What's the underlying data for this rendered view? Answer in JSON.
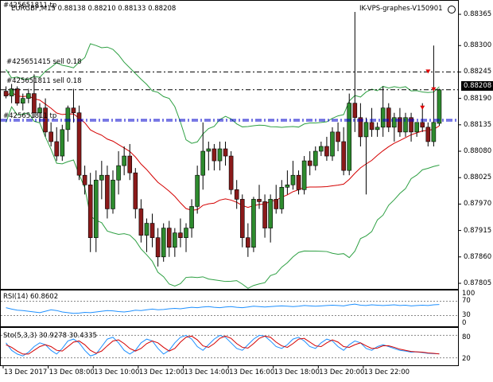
{
  "header": {
    "symbol_line": "EURGBP,M15  0.88138 0.88210 0.88133 0.88208",
    "symbol_line_overlap": "#425651811 tp",
    "indicator_title": "IK-VPS-graphes-V150901"
  },
  "order_lines": [
    {
      "text": "#425651415 sell 0.18",
      "price": 0.88245
    },
    {
      "text": "#425651811 sell 0.18",
      "price": 0.88208
    },
    {
      "text": "#425651811 tp",
      "price": 0.88143
    }
  ],
  "price_axis": {
    "ticks": [
      "0.88365",
      "0.88300",
      "0.88245",
      "0.88190",
      "0.88135",
      "0.88080",
      "0.88025",
      "0.87970",
      "0.87915",
      "0.87860",
      "0.87805"
    ],
    "current_price": "0.88208"
  },
  "rsi": {
    "title": "RSI(14) 60.8602",
    "levels": [
      "100",
      "70",
      "30",
      "0"
    ]
  },
  "stoch": {
    "title": "Sto(5,3,3) 30.9278 30.4335",
    "levels": [
      "80",
      "20"
    ]
  },
  "time_axis": {
    "labels": [
      "13 Dec 2017",
      "13 Dec 08:00",
      "13 Dec 10:00",
      "13 Dec 12:00",
      "13 Dec 14:00",
      "13 Dec 16:00",
      "13 Dec 18:00",
      "13 Dec 20:00",
      "13 Dec 22:00"
    ]
  },
  "colors": {
    "bull": "#2e8b2e",
    "bear": "#8b1a1a",
    "bollinger": "#2ea043",
    "ma": "#d40000",
    "rsi_line": "#1e90ff",
    "stoch_main": "#1e90ff",
    "stoch_signal": "#d40000",
    "order_line": "#000000",
    "tp_line": "#0000cc"
  },
  "chart_data": {
    "type": "candlestick",
    "timeframe": "M15",
    "y_range": [
      0.8779,
      0.884
    ],
    "candles": [
      {
        "o": 0.88205,
        "h": 0.88215,
        "l": 0.8819,
        "c": 0.88195
      },
      {
        "o": 0.88195,
        "h": 0.8822,
        "l": 0.8818,
        "c": 0.8821
      },
      {
        "o": 0.8821,
        "h": 0.88215,
        "l": 0.88175,
        "c": 0.8818
      },
      {
        "o": 0.8818,
        "h": 0.882,
        "l": 0.88165,
        "c": 0.8819
      },
      {
        "o": 0.8819,
        "h": 0.8821,
        "l": 0.8818,
        "c": 0.882
      },
      {
        "o": 0.882,
        "h": 0.8824,
        "l": 0.8815,
        "c": 0.8816
      },
      {
        "o": 0.8816,
        "h": 0.8818,
        "l": 0.8814,
        "c": 0.8817
      },
      {
        "o": 0.8817,
        "h": 0.8819,
        "l": 0.8811,
        "c": 0.8812
      },
      {
        "o": 0.8812,
        "h": 0.8814,
        "l": 0.8809,
        "c": 0.881
      },
      {
        "o": 0.881,
        "h": 0.8813,
        "l": 0.8806,
        "c": 0.8807
      },
      {
        "o": 0.8807,
        "h": 0.88135,
        "l": 0.8806,
        "c": 0.88125
      },
      {
        "o": 0.88125,
        "h": 0.88175,
        "l": 0.881,
        "c": 0.8817
      },
      {
        "o": 0.8817,
        "h": 0.8821,
        "l": 0.8814,
        "c": 0.8816
      },
      {
        "o": 0.8816,
        "h": 0.88175,
        "l": 0.8802,
        "c": 0.8803
      },
      {
        "o": 0.8803,
        "h": 0.8805,
        "l": 0.8799,
        "c": 0.8801
      },
      {
        "o": 0.8801,
        "h": 0.88035,
        "l": 0.8787,
        "c": 0.879
      },
      {
        "o": 0.879,
        "h": 0.8804,
        "l": 0.8787,
        "c": 0.8802
      },
      {
        "o": 0.8802,
        "h": 0.8806,
        "l": 0.8798,
        "c": 0.8803
      },
      {
        "o": 0.8803,
        "h": 0.8805,
        "l": 0.8794,
        "c": 0.8796
      },
      {
        "o": 0.8796,
        "h": 0.8804,
        "l": 0.8795,
        "c": 0.8802
      },
      {
        "o": 0.8802,
        "h": 0.8808,
        "l": 0.8799,
        "c": 0.8805
      },
      {
        "o": 0.8805,
        "h": 0.8809,
        "l": 0.8803,
        "c": 0.8807
      },
      {
        "o": 0.8807,
        "h": 0.88095,
        "l": 0.8802,
        "c": 0.88035
      },
      {
        "o": 0.88035,
        "h": 0.88045,
        "l": 0.8794,
        "c": 0.8796
      },
      {
        "o": 0.8796,
        "h": 0.8798,
        "l": 0.8789,
        "c": 0.87905
      },
      {
        "o": 0.87905,
        "h": 0.8794,
        "l": 0.8787,
        "c": 0.8793
      },
      {
        "o": 0.8793,
        "h": 0.8795,
        "l": 0.8788,
        "c": 0.879
      },
      {
        "o": 0.879,
        "h": 0.8792,
        "l": 0.8784,
        "c": 0.8786
      },
      {
        "o": 0.8786,
        "h": 0.8793,
        "l": 0.8785,
        "c": 0.8792
      },
      {
        "o": 0.8792,
        "h": 0.87935,
        "l": 0.8786,
        "c": 0.8788
      },
      {
        "o": 0.8788,
        "h": 0.8792,
        "l": 0.8786,
        "c": 0.8791
      },
      {
        "o": 0.8791,
        "h": 0.8794,
        "l": 0.8788,
        "c": 0.879
      },
      {
        "o": 0.879,
        "h": 0.8793,
        "l": 0.8787,
        "c": 0.8792
      },
      {
        "o": 0.8792,
        "h": 0.8798,
        "l": 0.879,
        "c": 0.87965
      },
      {
        "o": 0.87965,
        "h": 0.8805,
        "l": 0.8795,
        "c": 0.8803
      },
      {
        "o": 0.8803,
        "h": 0.8814,
        "l": 0.88,
        "c": 0.8808
      },
      {
        "o": 0.8808,
        "h": 0.881,
        "l": 0.8804,
        "c": 0.88085
      },
      {
        "o": 0.88085,
        "h": 0.88095,
        "l": 0.8804,
        "c": 0.8806
      },
      {
        "o": 0.8806,
        "h": 0.881,
        "l": 0.8804,
        "c": 0.88085
      },
      {
        "o": 0.88085,
        "h": 0.881,
        "l": 0.8805,
        "c": 0.8807
      },
      {
        "o": 0.8807,
        "h": 0.8808,
        "l": 0.8799,
        "c": 0.88
      },
      {
        "o": 0.88,
        "h": 0.8802,
        "l": 0.8796,
        "c": 0.8798
      },
      {
        "o": 0.8798,
        "h": 0.8799,
        "l": 0.8788,
        "c": 0.879
      },
      {
        "o": 0.879,
        "h": 0.8793,
        "l": 0.8786,
        "c": 0.8788
      },
      {
        "o": 0.8788,
        "h": 0.87985,
        "l": 0.8787,
        "c": 0.8798
      },
      {
        "o": 0.8798,
        "h": 0.8801,
        "l": 0.8796,
        "c": 0.87975
      },
      {
        "o": 0.87975,
        "h": 0.8799,
        "l": 0.879,
        "c": 0.8792
      },
      {
        "o": 0.8792,
        "h": 0.8799,
        "l": 0.8789,
        "c": 0.8798
      },
      {
        "o": 0.8798,
        "h": 0.8801,
        "l": 0.8795,
        "c": 0.8796
      },
      {
        "o": 0.8796,
        "h": 0.8802,
        "l": 0.8795,
        "c": 0.88005
      },
      {
        "o": 0.88005,
        "h": 0.8804,
        "l": 0.8799,
        "c": 0.8801
      },
      {
        "o": 0.8801,
        "h": 0.8806,
        "l": 0.88,
        "c": 0.8803
      },
      {
        "o": 0.8803,
        "h": 0.8804,
        "l": 0.8799,
        "c": 0.88
      },
      {
        "o": 0.88,
        "h": 0.8807,
        "l": 0.8799,
        "c": 0.8806
      },
      {
        "o": 0.8806,
        "h": 0.8808,
        "l": 0.8803,
        "c": 0.8805
      },
      {
        "o": 0.8805,
        "h": 0.8809,
        "l": 0.8804,
        "c": 0.8808
      },
      {
        "o": 0.8808,
        "h": 0.881,
        "l": 0.8807,
        "c": 0.8809
      },
      {
        "o": 0.8809,
        "h": 0.8811,
        "l": 0.8806,
        "c": 0.8807
      },
      {
        "o": 0.8807,
        "h": 0.8813,
        "l": 0.8806,
        "c": 0.8812
      },
      {
        "o": 0.8812,
        "h": 0.8814,
        "l": 0.8808,
        "c": 0.881
      },
      {
        "o": 0.881,
        "h": 0.8813,
        "l": 0.8803,
        "c": 0.8804
      },
      {
        "o": 0.8804,
        "h": 0.882,
        "l": 0.8803,
        "c": 0.8818
      },
      {
        "o": 0.8818,
        "h": 0.8837,
        "l": 0.8812,
        "c": 0.8815
      },
      {
        "o": 0.8815,
        "h": 0.8818,
        "l": 0.8809,
        "c": 0.8811
      },
      {
        "o": 0.8811,
        "h": 0.8815,
        "l": 0.8799,
        "c": 0.8814
      },
      {
        "o": 0.8814,
        "h": 0.8817,
        "l": 0.8811,
        "c": 0.88125
      },
      {
        "o": 0.88125,
        "h": 0.8814,
        "l": 0.8811,
        "c": 0.8813
      },
      {
        "o": 0.8813,
        "h": 0.88215,
        "l": 0.8811,
        "c": 0.8817
      },
      {
        "o": 0.8817,
        "h": 0.8818,
        "l": 0.8812,
        "c": 0.8813
      },
      {
        "o": 0.8813,
        "h": 0.8816,
        "l": 0.881,
        "c": 0.8815
      },
      {
        "o": 0.8815,
        "h": 0.8817,
        "l": 0.8811,
        "c": 0.8812
      },
      {
        "o": 0.8812,
        "h": 0.8816,
        "l": 0.8811,
        "c": 0.8815
      },
      {
        "o": 0.8815,
        "h": 0.8816,
        "l": 0.881,
        "c": 0.8812
      },
      {
        "o": 0.8812,
        "h": 0.8814,
        "l": 0.8811,
        "c": 0.8814
      },
      {
        "o": 0.8814,
        "h": 0.8818,
        "l": 0.8812,
        "c": 0.8813
      },
      {
        "o": 0.8813,
        "h": 0.8814,
        "l": 0.8809,
        "c": 0.881
      },
      {
        "o": 0.881,
        "h": 0.883,
        "l": 0.8809,
        "c": 0.8814
      },
      {
        "o": 0.88138,
        "h": 0.8821,
        "l": 0.88133,
        "c": 0.88208
      }
    ],
    "rsi": [
      52,
      48,
      45,
      44,
      42,
      40,
      38,
      42,
      46,
      44,
      40,
      38,
      36,
      37,
      39,
      38,
      40,
      42,
      44,
      43,
      41,
      40,
      42,
      45,
      44,
      46,
      48,
      46,
      47,
      49,
      50,
      49,
      51,
      53,
      52,
      54,
      55,
      53,
      52,
      54,
      55,
      53,
      52,
      54,
      56,
      55,
      54,
      55,
      56,
      57,
      56,
      55,
      56,
      58,
      57,
      56,
      57,
      58,
      59,
      58,
      57,
      60,
      62,
      59,
      58,
      60,
      59,
      58,
      59,
      60,
      58,
      59,
      57,
      58,
      59,
      58,
      60,
      60.86
    ],
    "stoch_main": [
      60,
      40,
      30,
      25,
      35,
      50,
      60,
      55,
      40,
      30,
      45,
      65,
      70,
      60,
      40,
      25,
      30,
      50,
      70,
      75,
      60,
      40,
      30,
      40,
      60,
      70,
      65,
      45,
      30,
      40,
      60,
      75,
      80,
      70,
      50,
      40,
      55,
      70,
      80,
      75,
      60,
      45,
      40,
      55,
      70,
      80,
      78,
      65,
      50,
      45,
      55,
      70,
      75,
      65,
      50,
      45,
      60,
      70,
      65,
      50,
      40,
      55,
      65,
      60,
      45,
      40,
      50,
      55,
      50,
      45,
      40,
      38,
      35,
      36,
      34,
      32,
      31,
      30.93
    ],
    "stoch_signal": [
      55,
      48,
      38,
      30,
      30,
      40,
      50,
      55,
      50,
      40,
      38,
      50,
      62,
      65,
      55,
      40,
      32,
      38,
      52,
      65,
      68,
      58,
      45,
      38,
      45,
      58,
      65,
      60,
      48,
      38,
      45,
      62,
      75,
      78,
      68,
      52,
      48,
      58,
      72,
      78,
      72,
      58,
      48,
      46,
      58,
      72,
      78,
      75,
      62,
      52,
      48,
      58,
      70,
      72,
      62,
      52,
      50,
      60,
      68,
      62,
      50,
      48,
      55,
      60,
      52,
      45,
      46,
      52,
      52,
      48,
      43,
      40,
      37,
      36,
      35,
      33,
      32,
      30.43
    ],
    "bollinger_period_note": ""
  }
}
